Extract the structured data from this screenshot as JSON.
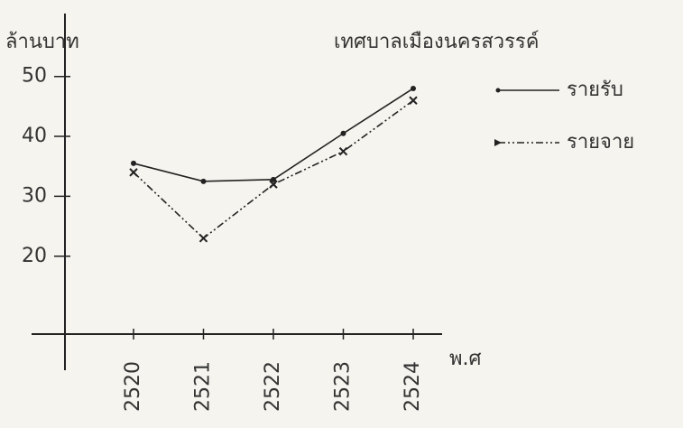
{
  "chart_data": {
    "type": "line",
    "title": "เทศบาลเมืองนครสวรรค์",
    "y_label": "ล้านบาท",
    "x_label": "พ.ศ",
    "categories": [
      "2520",
      "2521",
      "2522",
      "2523",
      "2524"
    ],
    "series": [
      {
        "name": "รายรับ",
        "color": "#222222",
        "dash": "solid",
        "values": [
          35.5,
          32.5,
          32.8,
          40.5,
          48
        ]
      },
      {
        "name": "รายจาย",
        "color": "#222222",
        "dash": "dashdot",
        "values": [
          34,
          23,
          32,
          37.5,
          46
        ]
      }
    ],
    "ylim": [
      7,
      59
    ],
    "yticks": [
      20,
      30,
      40,
      50
    ],
    "grid": false,
    "legend": "upper right"
  }
}
